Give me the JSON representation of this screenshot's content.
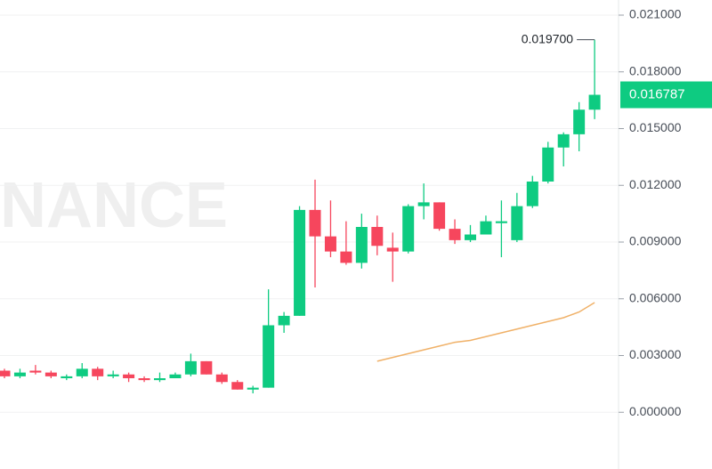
{
  "chart_data": {
    "type": "candlestick",
    "watermark": "NANCE",
    "up_color": "#0ecb81",
    "down_color": "#f6465d",
    "open": [
      0.0022,
      0.0019,
      0.0022,
      0.0021,
      0.0018,
      0.0019,
      0.0023,
      0.0019,
      0.002,
      0.0018,
      0.0017,
      0.0018,
      0.002,
      0.0027,
      0.002,
      0.0016,
      0.0012,
      0.0013,
      0.0046,
      0.0051,
      0.0107,
      0.0093,
      0.0085,
      0.0079,
      0.0098,
      0.0087,
      0.0085,
      0.0109,
      0.0111,
      0.0097,
      0.0091,
      0.0094,
      0.01,
      0.0091,
      0.0109,
      0.0122,
      0.014,
      0.0147,
      0.016
    ],
    "high": [
      0.0023,
      0.0023,
      0.0025,
      0.0022,
      0.002,
      0.0026,
      0.0024,
      0.0022,
      0.0021,
      0.0019,
      0.0021,
      0.0021,
      0.0031,
      0.0027,
      0.0021,
      0.0017,
      0.0014,
      0.0065,
      0.0053,
      0.0109,
      0.0123,
      0.0112,
      0.0101,
      0.0105,
      0.0104,
      0.0095,
      0.011,
      0.0121,
      0.0111,
      0.0102,
      0.0099,
      0.0104,
      0.0112,
      0.0116,
      0.0125,
      0.0143,
      0.0148,
      0.0164,
      0.0197
    ],
    "low": [
      0.0018,
      0.0018,
      0.002,
      0.0018,
      0.0017,
      0.0018,
      0.0017,
      0.0018,
      0.0016,
      0.0016,
      0.0016,
      0.0018,
      0.0019,
      0.002,
      0.0015,
      0.0012,
      0.001,
      0.0013,
      0.0042,
      0.0051,
      0.0066,
      0.0082,
      0.0078,
      0.0076,
      0.0083,
      0.0069,
      0.0084,
      0.0102,
      0.0096,
      0.0089,
      0.009,
      0.0094,
      0.0082,
      0.009,
      0.0108,
      0.0121,
      0.013,
      0.0138,
      0.0155
    ],
    "close": [
      0.0019,
      0.0021,
      0.0021,
      0.0019,
      0.0019,
      0.0023,
      0.0019,
      0.002,
      0.0018,
      0.0017,
      0.0018,
      0.002,
      0.0027,
      0.002,
      0.0016,
      0.0012,
      0.0013,
      0.0046,
      0.0051,
      0.0107,
      0.0093,
      0.0085,
      0.0079,
      0.0098,
      0.0088,
      0.0085,
      0.0109,
      0.0111,
      0.0097,
      0.0091,
      0.0094,
      0.0101,
      0.0101,
      0.0109,
      0.0122,
      0.014,
      0.0147,
      0.016,
      0.016787
    ],
    "ma_color": "#f0b168",
    "ma": [
      null,
      null,
      null,
      null,
      null,
      null,
      null,
      null,
      null,
      null,
      null,
      null,
      null,
      null,
      null,
      null,
      null,
      null,
      null,
      null,
      null,
      null,
      null,
      null,
      0.0027,
      0.0029,
      0.0031,
      0.0033,
      0.0035,
      0.0037,
      0.0038,
      0.004,
      0.0042,
      0.0044,
      0.0046,
      0.0048,
      0.005,
      0.0053,
      0.0058
    ],
    "ylim": [
      -0.003,
      0.0218
    ],
    "yticks": [
      {
        "value": 0,
        "label": "0.000000"
      },
      {
        "value": 0.003,
        "label": "0.003000"
      },
      {
        "value": 0.006,
        "label": "0.006000"
      },
      {
        "value": 0.009,
        "label": "0.009000"
      },
      {
        "value": 0.012,
        "label": "0.012000"
      },
      {
        "value": 0.015,
        "label": "0.015000"
      },
      {
        "value": 0.018,
        "label": "0.018000"
      },
      {
        "value": 0.021,
        "label": "0.021000"
      }
    ],
    "high_label": {
      "value": 0.0197,
      "label": "0.019700"
    },
    "last_price": {
      "value": 0.016787,
      "label": "0.016787"
    },
    "grid": true
  }
}
